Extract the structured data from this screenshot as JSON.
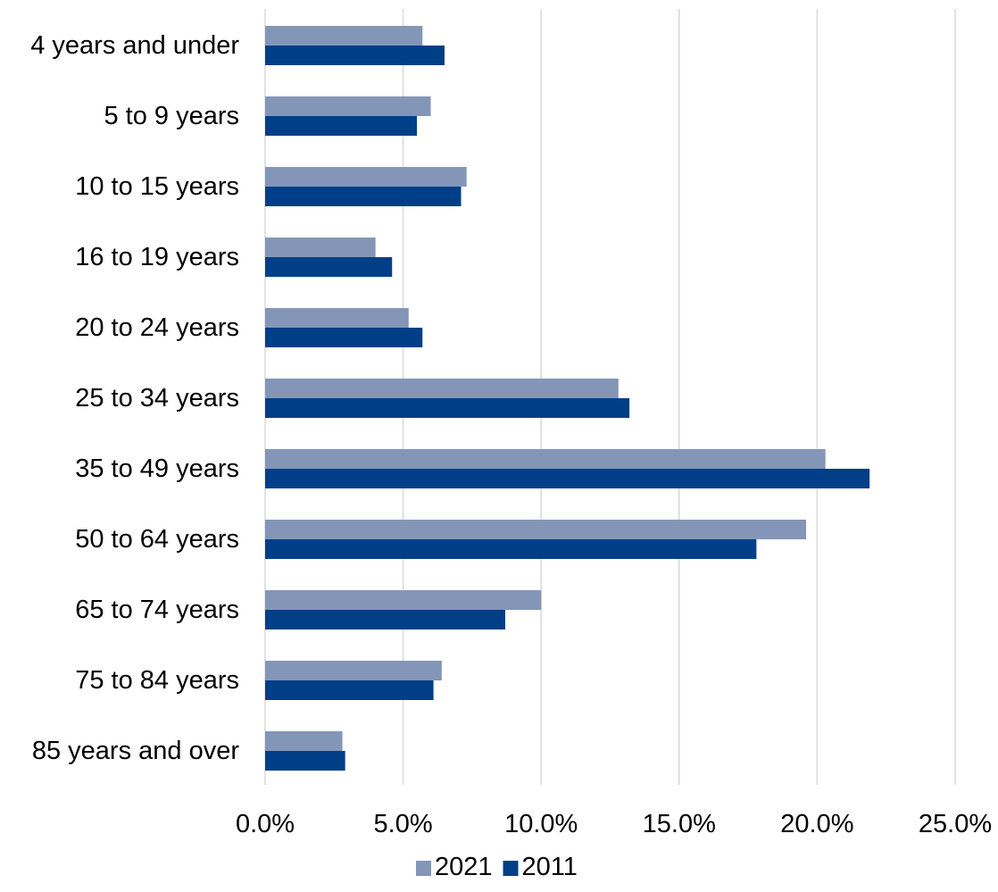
{
  "chart_data": {
    "type": "bar",
    "orientation": "horizontal",
    "title": "",
    "xlabel": "",
    "ylabel": "",
    "categories": [
      "4 years and under",
      "5 to 9 years",
      "10 to 15 years",
      "16 to 19 years",
      "20 to 24 years",
      "25 to 34 years",
      "35 to 49 years",
      "50 to 64 years",
      "65 to 74 years",
      "75 to 84 years",
      "85 years and over"
    ],
    "series": [
      {
        "name": "2021",
        "color": "#8496b8",
        "values": [
          5.7,
          6.0,
          7.3,
          4.0,
          5.2,
          12.8,
          20.3,
          19.6,
          10.0,
          6.4,
          2.8
        ]
      },
      {
        "name": "2011",
        "color": "#003f87",
        "values": [
          6.5,
          5.5,
          7.1,
          4.6,
          5.7,
          13.2,
          21.9,
          17.8,
          8.7,
          6.1,
          2.9
        ]
      }
    ],
    "xlim": [
      0,
      25
    ],
    "xticks": [
      "0.0%",
      "5.0%",
      "10.0%",
      "15.0%",
      "20.0%",
      "25.0%"
    ],
    "xtick_values": [
      0,
      5,
      10,
      15,
      20,
      25
    ],
    "value_format": "percent",
    "grid": "vertical",
    "gridline_color": "#d9d9d9",
    "legend": {
      "position": "bottom",
      "entries": [
        "2021",
        "2011"
      ]
    }
  }
}
